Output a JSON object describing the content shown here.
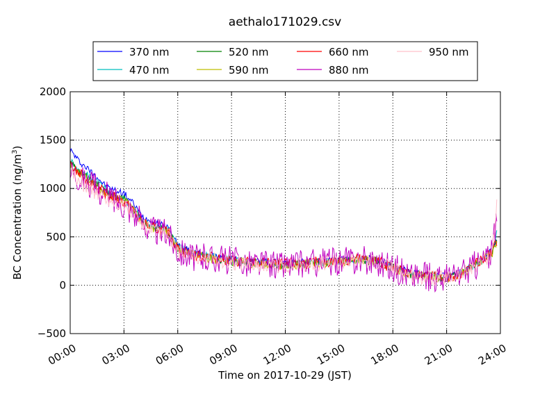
{
  "chart_data": {
    "type": "line",
    "title": "aethalo171029.csv",
    "xlabel": "Time on 2017-10-29 (JST)",
    "ylabel_main": "BC Concentration (ng/m",
    "ylabel_sup": "3",
    "ylabel_end": ")",
    "xlim": [
      "00:00",
      "24:00"
    ],
    "ylim": [
      -500,
      2000
    ],
    "x_ticks": [
      "00:00",
      "03:00",
      "06:00",
      "09:00",
      "12:00",
      "15:00",
      "18:00",
      "21:00",
      "24:00"
    ],
    "y_ticks": [
      "2000",
      "1500",
      "1000",
      "500",
      "0",
      "−500"
    ],
    "y_tick_values": [
      2000,
      1500,
      1000,
      500,
      0,
      -500
    ],
    "grid": true,
    "legend_placement": "top-center",
    "anchor_times": [
      "00:00",
      "00:30",
      "01:00",
      "01:30",
      "02:00",
      "02:30",
      "03:00",
      "03:30",
      "04:00",
      "04:30",
      "05:00",
      "05:30",
      "06:00",
      "07:00",
      "08:00",
      "09:00",
      "10:00",
      "11:00",
      "12:00",
      "13:00",
      "14:00",
      "15:00",
      "16:00",
      "17:00",
      "18:00",
      "19:00",
      "20:00",
      "21:00",
      "22:00",
      "23:00",
      "23:30",
      "23:50"
    ],
    "series": [
      {
        "name": "370 nm",
        "color": "#0000ff",
        "noise": 35,
        "values": [
          1400,
          1280,
          1200,
          1120,
          1020,
          980,
          950,
          850,
          720,
          660,
          630,
          600,
          420,
          330,
          300,
          270,
          250,
          240,
          230,
          240,
          250,
          260,
          280,
          270,
          200,
          130,
          110,
          90,
          150,
          280,
          350,
          480
        ]
      },
      {
        "name": "470 nm",
        "color": "#00bfbf",
        "noise": 40,
        "values": [
          1280,
          1200,
          1130,
          1060,
          980,
          940,
          900,
          800,
          680,
          620,
          600,
          560,
          400,
          320,
          290,
          260,
          240,
          230,
          220,
          230,
          240,
          250,
          270,
          260,
          190,
          120,
          100,
          80,
          140,
          270,
          330,
          560
        ]
      },
      {
        "name": "520 nm",
        "color": "#008000",
        "noise": 45,
        "values": [
          1260,
          1180,
          1110,
          1040,
          960,
          920,
          880,
          790,
          670,
          610,
          590,
          550,
          390,
          310,
          280,
          250,
          235,
          225,
          215,
          225,
          235,
          245,
          265,
          255,
          185,
          115,
          95,
          75,
          135,
          265,
          325,
          470
        ]
      },
      {
        "name": "590 nm",
        "color": "#bfbf00",
        "noise": 50,
        "values": [
          1240,
          1160,
          1090,
          1020,
          950,
          910,
          870,
          780,
          660,
          600,
          580,
          540,
          380,
          300,
          275,
          245,
          230,
          220,
          210,
          220,
          230,
          240,
          260,
          250,
          180,
          110,
          90,
          70,
          130,
          260,
          320,
          450
        ]
      },
      {
        "name": "660 nm",
        "color": "#ff0000",
        "noise": 60,
        "values": [
          1230,
          1150,
          1080,
          1010,
          940,
          900,
          860,
          770,
          650,
          600,
          575,
          535,
          375,
          300,
          290,
          255,
          235,
          225,
          215,
          225,
          240,
          250,
          270,
          255,
          185,
          115,
          90,
          75,
          135,
          265,
          330,
          470
        ]
      },
      {
        "name": "880 nm",
        "color": "#bf00bf",
        "noise": 150,
        "values": [
          1200,
          1130,
          1060,
          990,
          930,
          880,
          840,
          760,
          640,
          590,
          560,
          520,
          360,
          290,
          280,
          250,
          230,
          215,
          205,
          215,
          240,
          240,
          260,
          250,
          180,
          110,
          85,
          70,
          130,
          260,
          320,
          700
        ]
      },
      {
        "name": "950 nm",
        "color": "#ffc0cb",
        "noise": 80,
        "values": [
          1150,
          1080,
          1010,
          950,
          900,
          860,
          820,
          740,
          620,
          570,
          545,
          505,
          350,
          280,
          270,
          240,
          220,
          210,
          200,
          210,
          225,
          235,
          255,
          245,
          175,
          105,
          80,
          65,
          125,
          255,
          315,
          880
        ]
      }
    ]
  }
}
